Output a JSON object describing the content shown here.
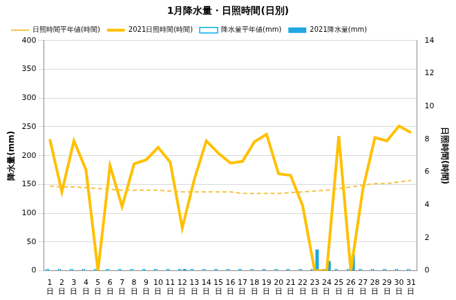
{
  "chart_data": {
    "type": "bar",
    "title": "1月降水量・日照時間(日別)",
    "categories": [
      [
        "1",
        "日"
      ],
      [
        "2",
        "日"
      ],
      [
        "3",
        "日"
      ],
      [
        "4",
        "日"
      ],
      [
        "5",
        "日"
      ],
      [
        "6",
        "日"
      ],
      [
        "7",
        "日"
      ],
      [
        "8",
        "日"
      ],
      [
        "9",
        "日"
      ],
      [
        "10",
        "日"
      ],
      [
        "11",
        "日"
      ],
      [
        "12",
        "日"
      ],
      [
        "13",
        "日"
      ],
      [
        "14",
        "日"
      ],
      [
        "15",
        "日"
      ],
      [
        "16",
        "日"
      ],
      [
        "17",
        "日"
      ],
      [
        "18",
        "日"
      ],
      [
        "19",
        "日"
      ],
      [
        "20",
        "日"
      ],
      [
        "21",
        "日"
      ],
      [
        "22",
        "日"
      ],
      [
        "23",
        "日"
      ],
      [
        "24",
        "日"
      ],
      [
        "25",
        "日"
      ],
      [
        "26",
        "日"
      ],
      [
        "27",
        "日"
      ],
      [
        "28",
        "日"
      ],
      [
        "29",
        "日"
      ],
      [
        "30",
        "日"
      ],
      [
        "31",
        "日"
      ]
    ],
    "y_label": "降水量(mm)",
    "y2_label": "日照時間(時間)",
    "ylim": [
      0,
      400
    ],
    "yticks": [
      0,
      50,
      100,
      150,
      200,
      250,
      300,
      350,
      400
    ],
    "y2lim": [
      0,
      14
    ],
    "y2ticks": [
      0,
      2,
      4,
      6,
      8,
      10,
      12,
      14
    ],
    "grid": true,
    "legend": "top",
    "series": [
      {
        "name": "降水量平年値(mm)",
        "type": "bar",
        "color": "#00b0f0",
        "marker": "hollow",
        "values": [
          3,
          3,
          3,
          3,
          3,
          3,
          3,
          3,
          3,
          3,
          3,
          3,
          3,
          3,
          3,
          3,
          3,
          3,
          3,
          3,
          3,
          3,
          3,
          3,
          3,
          3,
          3,
          3,
          3,
          3,
          3
        ]
      },
      {
        "name": "2021降水量(mm)",
        "type": "bar",
        "color": "#1ea7e1",
        "values": [
          0,
          0,
          0,
          0,
          0,
          0,
          0,
          0,
          0,
          0,
          0,
          3,
          0,
          0,
          0,
          0,
          0,
          0,
          0,
          0,
          0,
          0,
          37,
          17,
          0,
          28,
          0,
          0,
          0,
          0,
          0
        ]
      },
      {
        "name": "日照時間平年値(時間)",
        "type": "line",
        "axis": "y2",
        "color": "#f5c242",
        "line_style": "dashed",
        "marker": "none",
        "values": [
          5.15,
          5.1,
          5.1,
          5.05,
          5.0,
          4.95,
          4.9,
          4.9,
          4.9,
          4.9,
          4.85,
          4.8,
          4.8,
          4.8,
          4.8,
          4.8,
          4.7,
          4.7,
          4.7,
          4.7,
          4.75,
          4.8,
          4.85,
          4.9,
          5.0,
          5.1,
          5.2,
          5.3,
          5.3,
          5.4,
          5.5
        ]
      },
      {
        "name": "2021日照時間(時間)",
        "type": "line",
        "axis": "y2",
        "color": "#ffc000",
        "line_style": "solid",
        "marker": "none",
        "values": [
          8.0,
          4.8,
          7.9,
          6.15,
          0,
          6.4,
          3.9,
          6.5,
          6.75,
          7.5,
          6.6,
          2.6,
          5.55,
          7.9,
          7.15,
          6.55,
          6.65,
          7.85,
          8.3,
          5.9,
          5.8,
          3.95,
          0,
          0,
          8.2,
          0,
          4.95,
          8.1,
          7.9,
          8.8,
          8.4
        ]
      }
    ]
  }
}
